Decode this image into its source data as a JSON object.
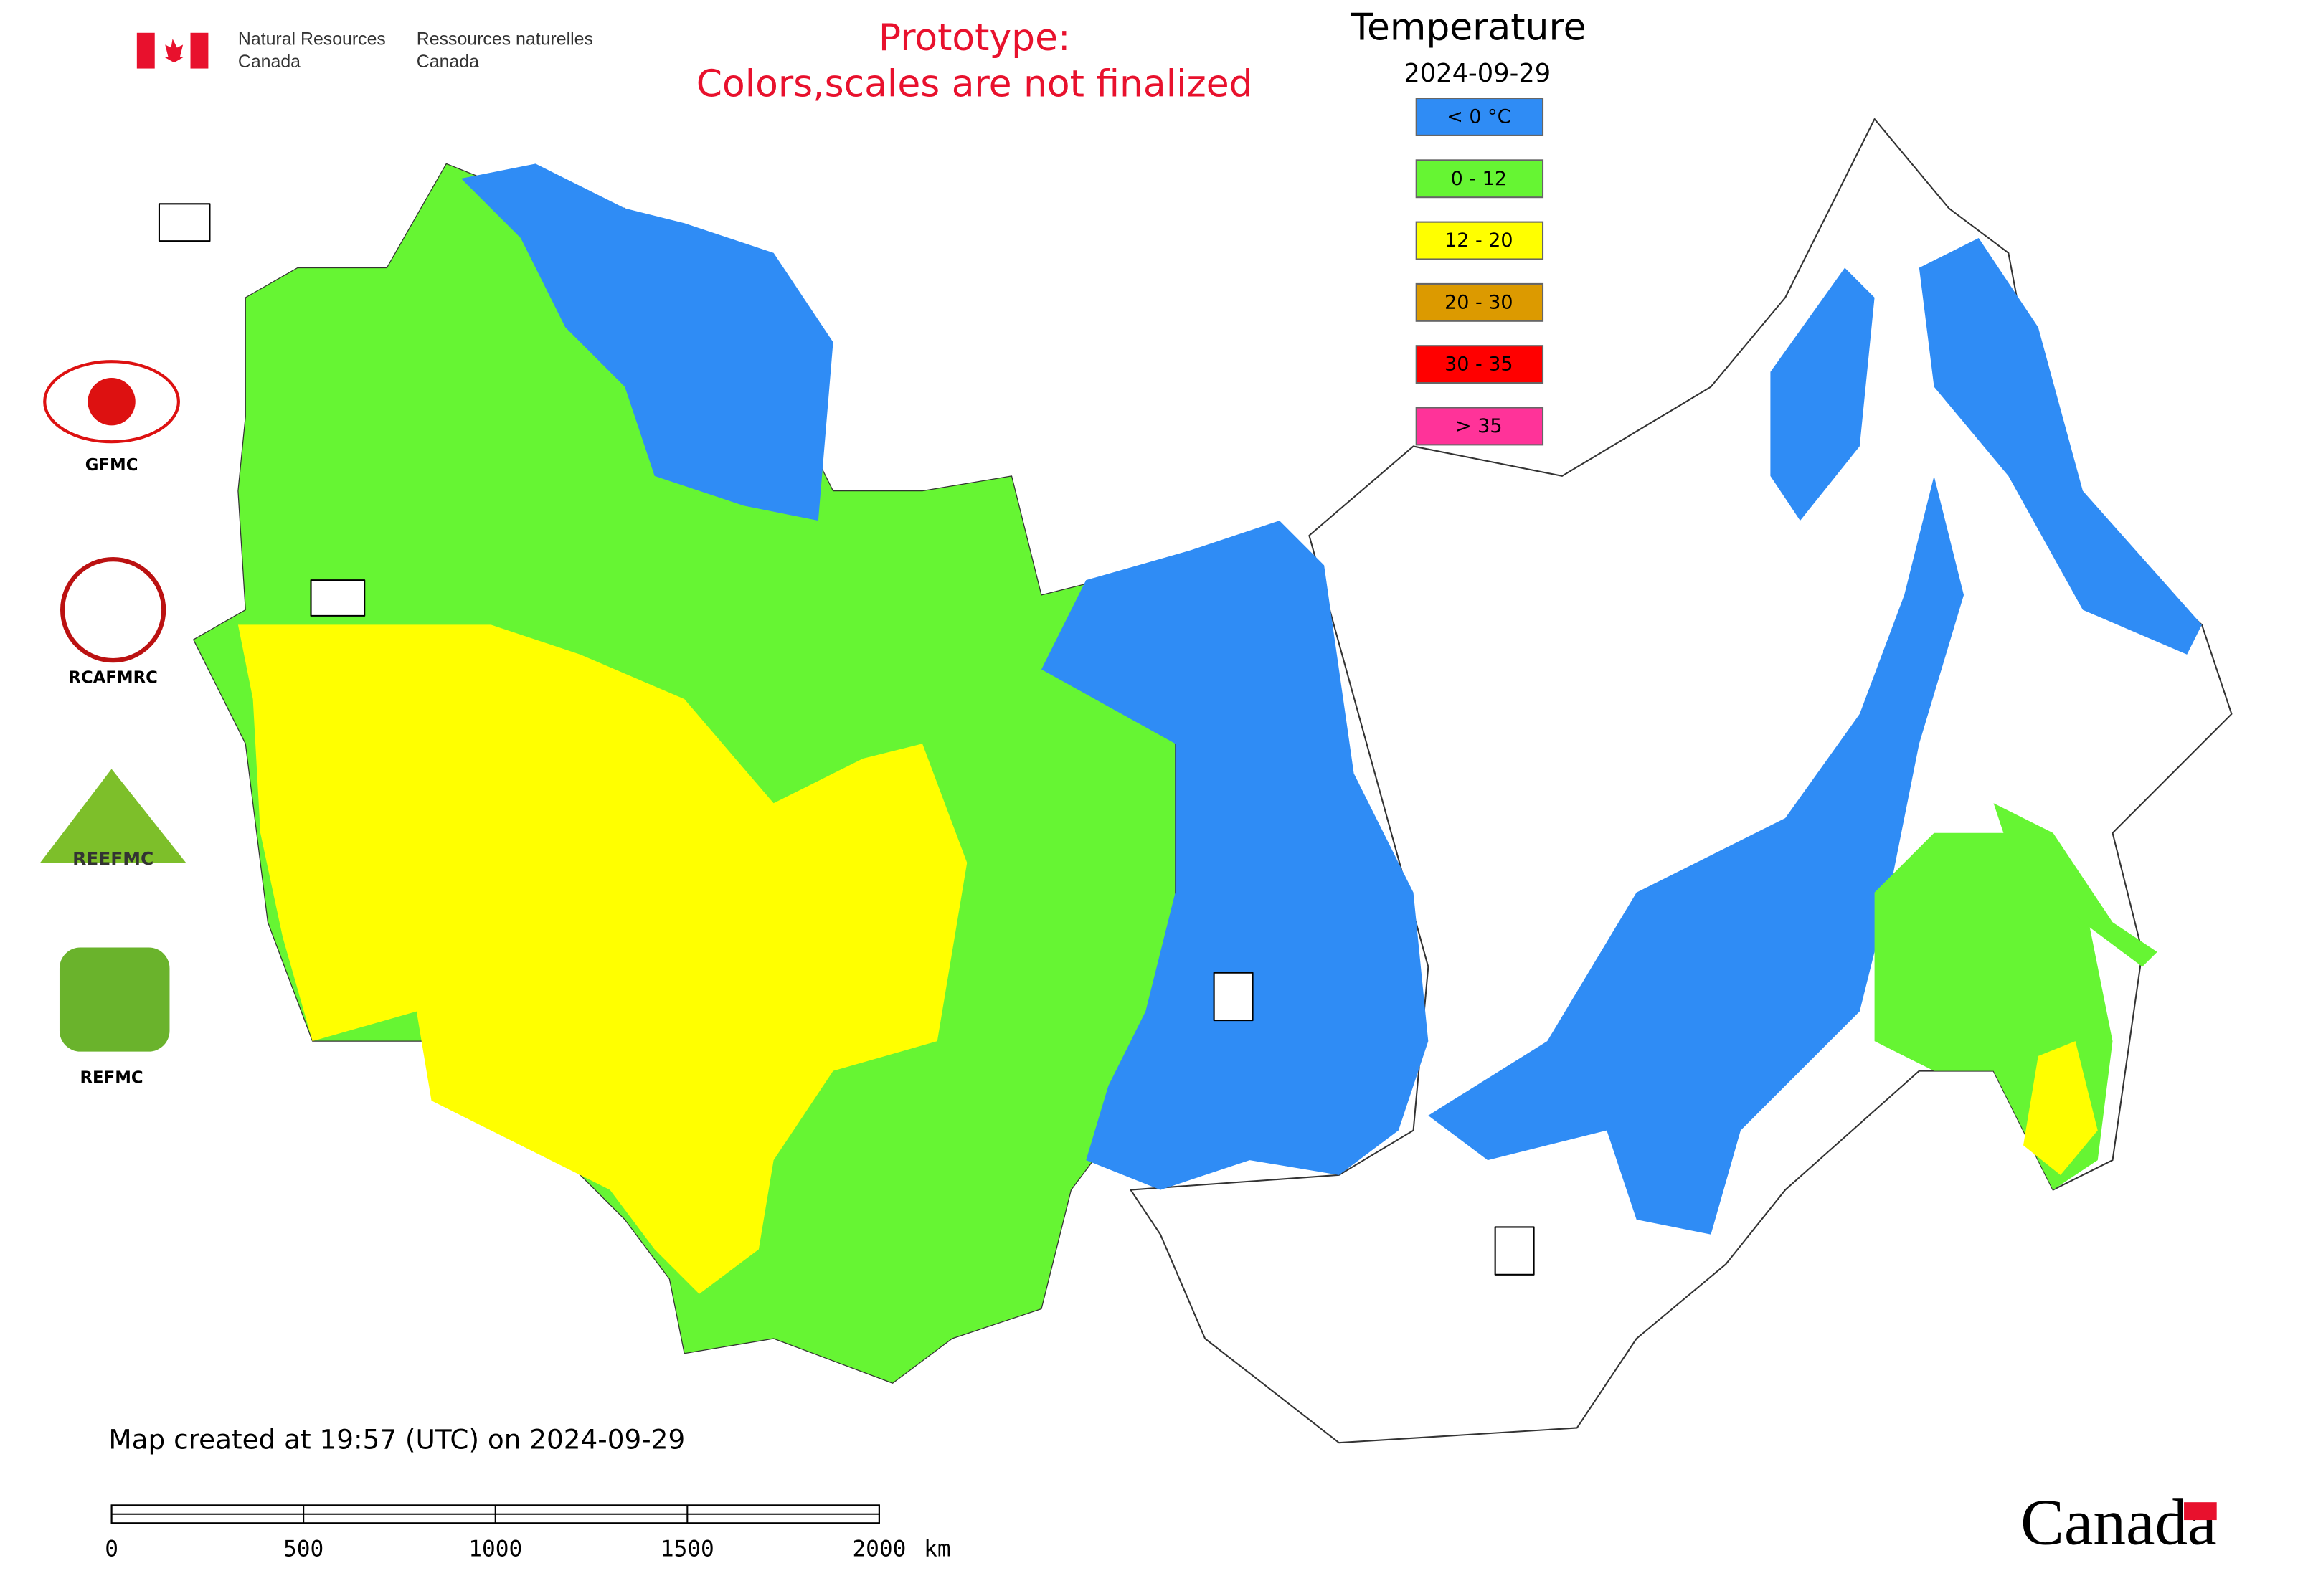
{
  "header": {
    "agency_en": [
      "Natural Resources",
      "Canada"
    ],
    "agency_fr": [
      "Ressources naturelles",
      "Canada"
    ],
    "notice": [
      "Prototype:",
      "Colors,scales are not finalized"
    ]
  },
  "legend": {
    "title": "Temperature",
    "date": "2024-09-29",
    "items": [
      {
        "label": "< 0 °C",
        "color": "#2f8cf5"
      },
      {
        "label": "0 - 12",
        "color": "#66f533"
      },
      {
        "label": "12 - 20",
        "color": "#ffff00"
      },
      {
        "label": "20 - 30",
        "color": "#dc9a00"
      },
      {
        "label": "30 - 35",
        "color": "#ff0000"
      },
      {
        "label": "> 35",
        "color": "#ff3399"
      }
    ]
  },
  "logos": [
    "GFMC",
    "RCAFMRC",
    "REEFMC",
    "REFMC"
  ],
  "footer": {
    "created": "Map created at 19:57 (UTC) on 2024-09-29",
    "scale_ticks": [
      0,
      500,
      1000,
      1500,
      2000
    ],
    "scale_unit": "km",
    "wordmark": "Canada"
  }
}
